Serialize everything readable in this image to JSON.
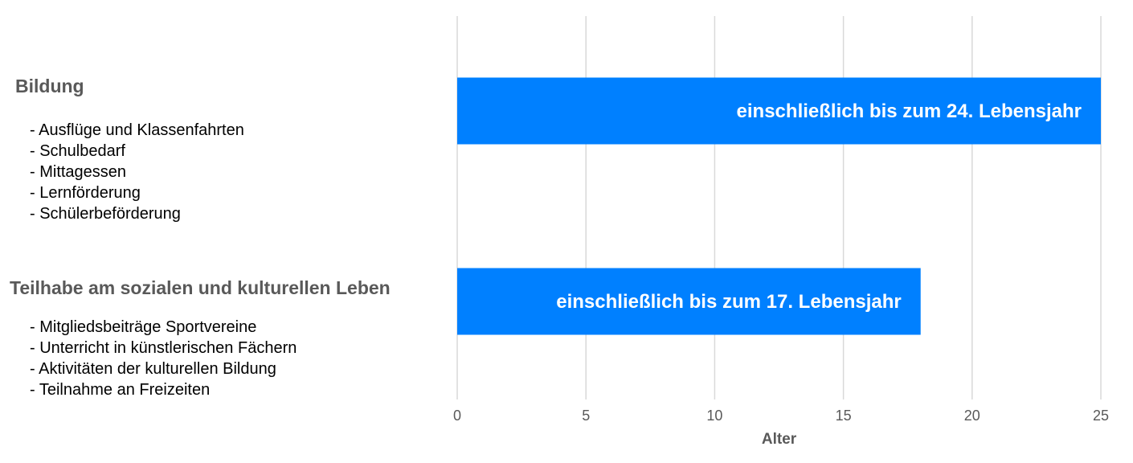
{
  "chart_data": {
    "type": "bar",
    "orientation": "horizontal",
    "categories": [
      {
        "title": "Bildung",
        "items": [
          "- Ausflüge und Klassenfahrten",
          "- Schulbedarf",
          "- Mittagessen",
          "- Lernförderung",
          "- Schülerbeförderung"
        ]
      },
      {
        "title": "Teilhabe am sozialen und kulturellen Leben",
        "items": [
          "- Mitgliedsbeiträge Sportvereine",
          "- Unterricht in künstlerischen Fächern",
          "- Aktivitäten der kulturellen Bildung",
          "- Teilnahme an Freizeiten"
        ]
      }
    ],
    "values": [
      25,
      18
    ],
    "data_labels": [
      "einschließlich bis zum 24. Lebensjahr",
      "einschließlich bis zum 17. Lebensjahr"
    ],
    "xlabel": "Alter",
    "xlim": [
      0,
      25
    ],
    "xticks": [
      "0",
      "5",
      "10",
      "15",
      "20",
      "25"
    ],
    "grid": true,
    "bar_color": "#0080ff",
    "grid_color": "#d9d9d9"
  }
}
